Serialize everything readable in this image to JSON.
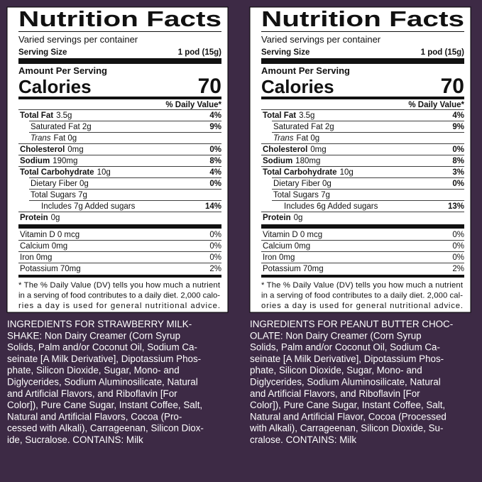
{
  "panels": [
    {
      "title": "Nutrition Facts",
      "servings": "Varied servings per container",
      "serving_size_label": "Serving Size",
      "serving_size": "1 pod (15g)",
      "amount_per_serving": "Amount Per Serving",
      "calories_label": "Calories",
      "calories": "70",
      "dv_header": "% Daily Value*",
      "rows": [
        {
          "name": "Total Fat",
          "amount": "3.5g",
          "dv": "4%",
          "bold": true,
          "indent": 0
        },
        {
          "name": "Saturated Fat 2g",
          "dv": "9%",
          "bold": false,
          "indent": 1
        },
        {
          "name": "Trans",
          "amount": "Fat 0g",
          "bold": false,
          "italic": true,
          "indent": 1
        },
        {
          "name": "Cholesterol",
          "amount": "0mg",
          "dv": "0%",
          "bold": true,
          "indent": 0
        },
        {
          "name": "Sodium",
          "amount": "190mg",
          "dv": "8%",
          "bold": true,
          "indent": 0
        },
        {
          "name": "Total Carbohydrate",
          "amount": "10g",
          "dv": "4%",
          "bold": true,
          "indent": 0
        },
        {
          "name": "Dietary Fiber 0g",
          "dv": "0%",
          "bold": false,
          "indent": 1
        },
        {
          "name": "Total Sugars 7g",
          "bold": false,
          "indent": 1
        },
        {
          "name": "Includes 7g Added sugars",
          "dv": "14%",
          "bold": false,
          "indent": 2
        },
        {
          "name": "Protein",
          "amount": "0g",
          "bold": true,
          "indent": 0
        }
      ],
      "vitamins": [
        {
          "name": "Vitamin D 0 mcg",
          "dv": "0%"
        },
        {
          "name": "Calcium 0mg",
          "dv": "0%"
        },
        {
          "name": "Iron 0mg",
          "dv": "0%"
        },
        {
          "name": "Potassium 70mg",
          "dv": "2%"
        }
      ],
      "footnote": [
        "* The % Daily Value (DV) tells you how much a nutrient",
        "in a serving of food contributes to a daily diet. 2,000 calo-",
        "ries a day is used for general nutritional advice."
      ],
      "ingredients": [
        "INGREDIENTS FOR STRAWBERRY MILK-",
        "SHAKE: Non Dairy Creamer (Corn Syrup",
        "Solids, Palm and/or Coconut Oil, Sodium Ca-",
        "seinate [A Milk Derivative], Dipotassium Phos-",
        "phate, Silicon Dioxide, Sugar, Mono- and",
        "Diglycerides, Sodium Aluminosilicate, Natural",
        "and Artificial Flavors, and Riboflavin [For",
        "Color]), Pure Cane Sugar, Instant Coffee, Salt,",
        "Natural and Artificial Flavors, Cocoa (Pro-",
        "cessed with Alkali), Carrageenan, Silicon Diox-",
        "ide, Sucralose. CONTAINS: Milk"
      ]
    },
    {
      "title": "Nutrition Facts",
      "servings": "Varied servings per container",
      "serving_size_label": "Serving Size",
      "serving_size": "1 pod (15g)",
      "amount_per_serving": "Amount Per Serving",
      "calories_label": "Calories",
      "calories": "70",
      "dv_header": "% Daily Value*",
      "rows": [
        {
          "name": "Total Fat",
          "amount": "3.5g",
          "dv": "4%",
          "bold": true,
          "indent": 0
        },
        {
          "name": "Saturated Fat 2g",
          "dv": "9%",
          "bold": false,
          "indent": 1
        },
        {
          "name": "Trans",
          "amount": "Fat 0g",
          "bold": false,
          "italic": true,
          "indent": 1
        },
        {
          "name": "Cholesterol",
          "amount": "0mg",
          "dv": "0%",
          "bold": true,
          "indent": 0
        },
        {
          "name": "Sodium",
          "amount": "180mg",
          "dv": "8%",
          "bold": true,
          "indent": 0
        },
        {
          "name": "Total Carbohydrate",
          "amount": "10g",
          "dv": "3%",
          "bold": true,
          "indent": 0
        },
        {
          "name": "Dietary Fiber 0g",
          "dv": "0%",
          "bold": false,
          "indent": 1
        },
        {
          "name": "Total Sugars 7g",
          "bold": false,
          "indent": 1
        },
        {
          "name": "Includes 6g Added sugars",
          "dv": "13%",
          "bold": false,
          "indent": 2
        },
        {
          "name": "Protein",
          "amount": "0g",
          "bold": true,
          "indent": 0
        }
      ],
      "vitamins": [
        {
          "name": "Vitamin D 0 mcg",
          "dv": "0%"
        },
        {
          "name": "Calcium 0mg",
          "dv": "0%"
        },
        {
          "name": "Iron 0mg",
          "dv": "0%"
        },
        {
          "name": "Potassium 70mg",
          "dv": "2%"
        }
      ],
      "footnote": [
        "* The % Daily Value (DV) tells you how much a nutrient",
        "in a serving of food contributes to a daily diet. 2,000 cal-",
        "ories a day is used for general nutritional advice."
      ],
      "ingredients": [
        "INGREDIENTS FOR PEANUT BUTTER CHOC-",
        "OLATE: Non Dairy Creamer (Corn Syrup",
        "Solids, Palm and/or Coconut Oil, Sodium Ca-",
        "seinate [A Milk Derivative], Dipotassium Phos-",
        "phate, Silicon Dioxide, Sugar, Mono- and",
        "Diglycerides, Sodium Aluminosilicate, Natural",
        "and Artificial Flavors, and Riboflavin [For",
        "Color]), Pure Cane Sugar, Instant Coffee, Salt,",
        "Natural and Artificial Flavor, Cocoa (Processed",
        "with Alkali), Carrageenan, Silicon Dioxide, Su-",
        "cralose. CONTAINS: Milk"
      ]
    }
  ]
}
